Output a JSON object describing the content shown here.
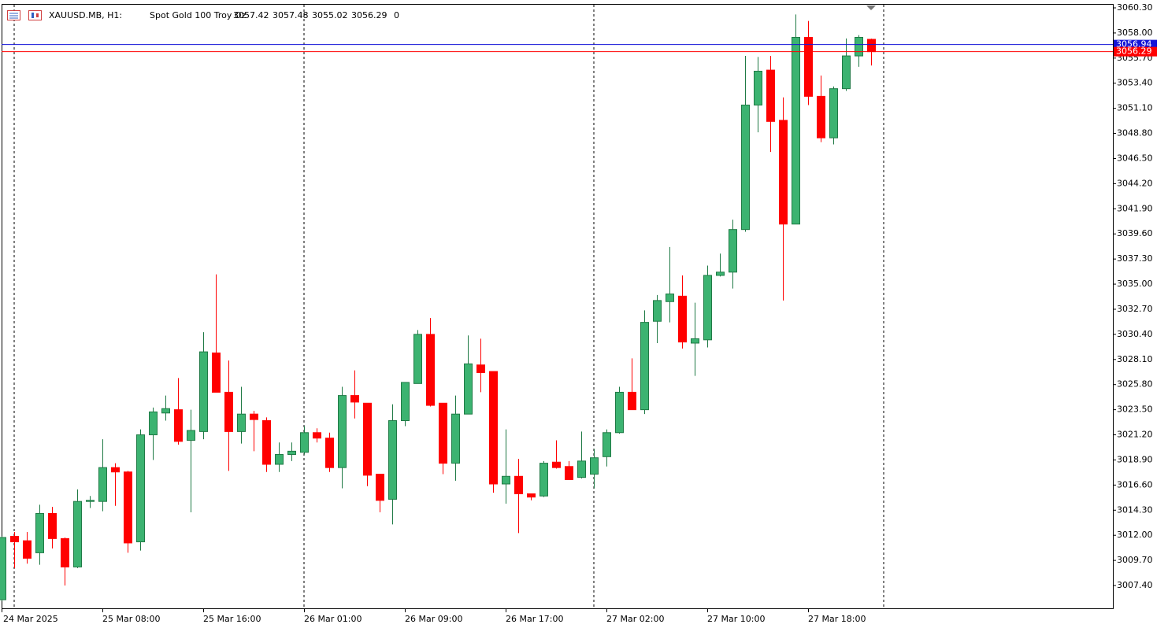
{
  "chart_data": {
    "type": "candlestick",
    "symbol": "XAUUSD.MB, H1:",
    "description": "Spot Gold 100 Troy Oz",
    "header_open": 3057.42,
    "header_high": 3057.48,
    "header_low": 3055.02,
    "header_close": 3056.29,
    "header_extra": 0,
    "categories": [
      "24 Mar 2025",
      null,
      null,
      null,
      null,
      null,
      null,
      null,
      "25 Mar 08:00",
      null,
      null,
      null,
      null,
      null,
      null,
      null,
      "25 Mar 16:00",
      null,
      null,
      null,
      null,
      null,
      null,
      null,
      "26 Mar 01:00",
      null,
      null,
      null,
      null,
      null,
      null,
      null,
      "26 Mar 09:00",
      null,
      null,
      null,
      null,
      null,
      null,
      null,
      "26 Mar 17:00",
      null,
      null,
      null,
      null,
      null,
      null,
      null,
      "27 Mar 02:00",
      null,
      null,
      null,
      null,
      null,
      null,
      null,
      "27 Mar 10:00",
      null,
      null,
      null,
      null,
      null,
      null,
      null,
      "27 Mar 18:00",
      null,
      null,
      null,
      null,
      null
    ],
    "open": [
      3006.1,
      3011.9,
      3011.5,
      3010.4,
      3014.0,
      3011.7,
      3009.1,
      3015.1,
      3015.1,
      3018.2,
      3017.8,
      3011.4,
      3021.2,
      3023.2,
      3023.5,
      3020.7,
      3021.5,
      3028.7,
      3025.1,
      3021.5,
      3023.1,
      3022.5,
      3018.5,
      3019.4,
      3019.6,
      3021.4,
      3020.9,
      3018.2,
      3024.8,
      3024.1,
      3017.6,
      3015.3,
      3022.5,
      3025.9,
      3030.4,
      3024.1,
      3018.6,
      3023.1,
      3027.6,
      3027.0,
      3016.7,
      3017.4,
      3015.8,
      3015.6,
      3018.7,
      3018.3,
      3017.3,
      3017.6,
      3019.2,
      3021.4,
      3025.1,
      3023.5,
      3031.6,
      3033.4,
      3033.9,
      3029.6,
      3029.9,
      3035.8,
      3036.1,
      3040.0,
      3051.4,
      3054.6,
      3050.0,
      3040.5,
      3057.6,
      3052.2,
      3048.4,
      3052.9,
      3055.9,
      3057.42
    ],
    "high": [
      3011.9,
      3012.3,
      3012.3,
      3014.8,
      3014.6,
      3011.8,
      3016.2,
      3015.6,
      3020.8,
      3018.6,
      3017.9,
      3021.7,
      3023.7,
      3024.8,
      3026.4,
      3023.5,
      3030.6,
      3035.9,
      3028.0,
      3025.6,
      3023.4,
      3022.8,
      3020.5,
      3020.5,
      3022.0,
      3021.8,
      3021.4,
      3025.6,
      3027.1,
      3024.1,
      3017.6,
      3024.0,
      3026.0,
      3030.8,
      3031.9,
      3024.1,
      3024.8,
      3030.3,
      3030.0,
      3027.0,
      3021.7,
      3019.0,
      3015.8,
      3018.8,
      3020.7,
      3018.8,
      3021.5,
      3019.9,
      3021.7,
      3025.6,
      3028.2,
      3032.6,
      3034.0,
      3038.4,
      3035.8,
      3033.3,
      3036.7,
      3037.8,
      3040.9,
      3055.9,
      3055.8,
      3055.9,
      3052.1,
      3059.7,
      3059.1,
      3054.1,
      3053.1,
      3057.5,
      3057.8,
      3057.48
    ],
    "low": [
      3006.0,
      3009.0,
      3009.4,
      3009.3,
      3010.8,
      3007.4,
      3009.0,
      3014.5,
      3014.2,
      3014.7,
      3010.4,
      3010.6,
      3018.9,
      3022.5,
      3020.3,
      3014.1,
      3020.8,
      3025.1,
      3017.9,
      3020.4,
      3019.7,
      3017.8,
      3017.8,
      3018.8,
      3019.4,
      3020.5,
      3017.8,
      3016.3,
      3022.7,
      3016.5,
      3014.1,
      3013.0,
      3022.0,
      3025.9,
      3023.8,
      3017.6,
      3017.0,
      3023.1,
      3025.1,
      3015.9,
      3014.9,
      3012.2,
      3015.2,
      3015.5,
      3018.1,
      3017.1,
      3017.2,
      3016.3,
      3018.3,
      3021.3,
      3023.5,
      3023.1,
      3029.6,
      3031.5,
      3029.1,
      3026.6,
      3029.2,
      3035.7,
      3034.6,
      3039.8,
      3048.9,
      3047.1,
      3033.5,
      3040.5,
      3051.4,
      3048.0,
      3047.8,
      3052.7,
      3054.9,
      3055.02
    ],
    "close": [
      3011.8,
      3011.4,
      3009.9,
      3014.0,
      3011.7,
      3009.1,
      3015.1,
      3015.2,
      3018.2,
      3017.8,
      3011.3,
      3021.2,
      3023.3,
      3023.6,
      3020.6,
      3021.6,
      3028.8,
      3025.1,
      3021.5,
      3023.1,
      3022.6,
      3018.5,
      3019.4,
      3019.7,
      3021.4,
      3020.9,
      3018.2,
      3024.8,
      3024.2,
      3017.5,
      3015.2,
      3022.5,
      3026.0,
      3030.4,
      3023.9,
      3018.6,
      3023.1,
      3027.7,
      3026.9,
      3016.7,
      3017.4,
      3015.8,
      3015.5,
      3018.6,
      3018.2,
      3017.1,
      3018.8,
      3019.1,
      3021.4,
      3025.1,
      3023.5,
      3031.5,
      3033.5,
      3034.1,
      3029.7,
      3030.0,
      3035.8,
      3036.1,
      3040.0,
      3051.4,
      3054.5,
      3049.9,
      3040.5,
      3057.6,
      3052.2,
      3048.4,
      3052.9,
      3055.9,
      3057.6,
      3056.29
    ],
    "up_color": "#3cb371",
    "down_color": "#ff0000",
    "price_lines": [
      {
        "value": 3056.94,
        "color": "#1414d8"
      },
      {
        "value": 3056.29,
        "color": "#ff0000"
      }
    ],
    "ylim": [
      3005.24,
      3060.66
    ],
    "yticks": [
      {
        "value": 3060.3,
        "label": "3060.30"
      },
      {
        "value": 3058.0,
        "label": "3058.00"
      },
      {
        "value": 3055.7,
        "label": "3055.70"
      },
      {
        "value": 3053.4,
        "label": "3053.40"
      },
      {
        "value": 3051.1,
        "label": "3051.10"
      },
      {
        "value": 3048.8,
        "label": "3048.80"
      },
      {
        "value": 3046.5,
        "label": "3046.50"
      },
      {
        "value": 3044.2,
        "label": "3044.20"
      },
      {
        "value": 3041.9,
        "label": "3041.90"
      },
      {
        "value": 3039.6,
        "label": "3039.60"
      },
      {
        "value": 3037.3,
        "label": "3037.30"
      },
      {
        "value": 3035.0,
        "label": "3035.00"
      },
      {
        "value": 3032.7,
        "label": "3032.70"
      },
      {
        "value": 3030.4,
        "label": "3030.40"
      },
      {
        "value": 3028.1,
        "label": "3028.10"
      },
      {
        "value": 3025.8,
        "label": "3025.80"
      },
      {
        "value": 3023.5,
        "label": "3023.50"
      },
      {
        "value": 3021.2,
        "label": "3021.20"
      },
      {
        "value": 3018.9,
        "label": "3018.90"
      },
      {
        "value": 3016.6,
        "label": "3016.60"
      },
      {
        "value": 3014.3,
        "label": "3014.30"
      },
      {
        "value": 3012.0,
        "label": "3012.00"
      },
      {
        "value": 3009.7,
        "label": "3009.70"
      },
      {
        "value": 3007.4,
        "label": "3007.40"
      }
    ],
    "grid": false
  }
}
